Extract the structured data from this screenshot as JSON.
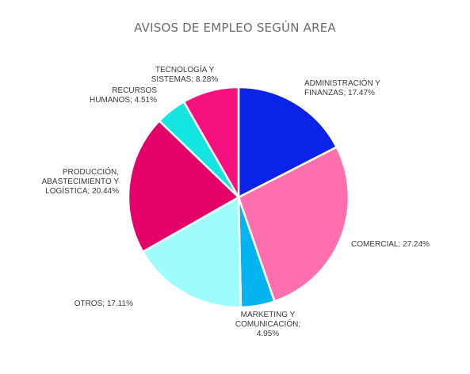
{
  "chart_data": {
    "type": "pie",
    "title": "AVISOS DE EMPLEO SEGÚN AREA",
    "slices": [
      {
        "label": [
          "ADMINISTRACIÓN Y",
          "FINANZAS; 17.47%"
        ],
        "value": 17.47,
        "color": "#0b22e8"
      },
      {
        "label": [
          "COMERCIAL; 27.24%"
        ],
        "value": 27.24,
        "color": "#ff6fae"
      },
      {
        "label": [
          "MARKETING Y",
          "COMUNICACIÓN;",
          "4.95%"
        ],
        "value": 4.95,
        "color": "#03b4f1"
      },
      {
        "label": [
          "OTROS; 17.11%"
        ],
        "value": 17.11,
        "color": "#9ffcfc"
      },
      {
        "label": [
          "PRODUCCIÓN,",
          "ABASTECIMIENTO Y",
          "LOGÍSTICA; 20.44%"
        ],
        "value": 20.44,
        "color": "#e6006a"
      },
      {
        "label": [
          "RECURSOS",
          "HUMANOS; 4.51%"
        ],
        "value": 4.51,
        "color": "#14e5e0"
      },
      {
        "label": [
          "TECNOLOGÍA Y",
          "SISTEMAS; 8.28%"
        ],
        "value": 8.28,
        "color": "#f7117e"
      }
    ],
    "start": "top",
    "direction": "clockwise"
  }
}
